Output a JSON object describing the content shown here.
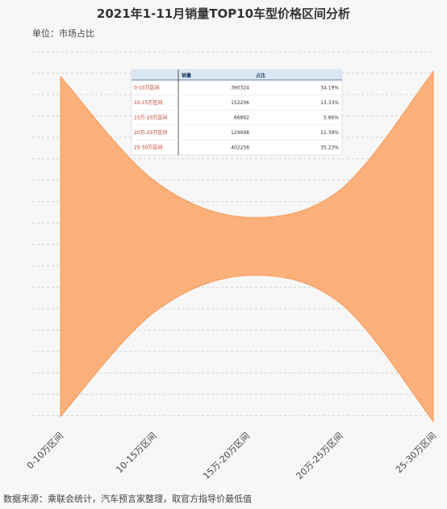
{
  "title": "2021年1-11月销量TOP10车型价格区间分析",
  "unit_label": "单位：市场占比",
  "source_note": "数据来源：乘联会统计，汽车预言家整理，取官方指导价最低值",
  "colors": {
    "fill": "#fdb07a",
    "stroke": "#f59a5c",
    "grid": "#c8c8c8",
    "table_header_bg": "#dce6f2",
    "table_category": "#c0392b"
  },
  "chart_data": {
    "type": "area",
    "subtype": "funnel-band",
    "title": "2021年1-11月销量TOP10车型价格区间分析",
    "categories": [
      "0-10万区间",
      "10-15万区间",
      "15万-20万区间",
      "20万-25万区间",
      "25-30万区间"
    ],
    "series": [
      {
        "values": [
          34.19,
          13.33,
          5.86,
          11.39,
          35.23
        ]
      }
    ],
    "grid": true,
    "table": {
      "headers": [
        "",
        "销量",
        "占比"
      ],
      "rows": [
        {
          "category": "0-10万区间",
          "sales": "390324",
          "share": "34.19%"
        },
        {
          "category": "10-15万区间",
          "sales": "152206",
          "share": "13.33%"
        },
        {
          "category": "15万-20万区间",
          "sales": "66862",
          "share": "5.86%"
        },
        {
          "category": "20万-25万区间",
          "sales": "129998",
          "share": "11.39%"
        },
        {
          "category": "25-30万区间",
          "sales": "402256",
          "share": "35.23%"
        }
      ]
    }
  }
}
